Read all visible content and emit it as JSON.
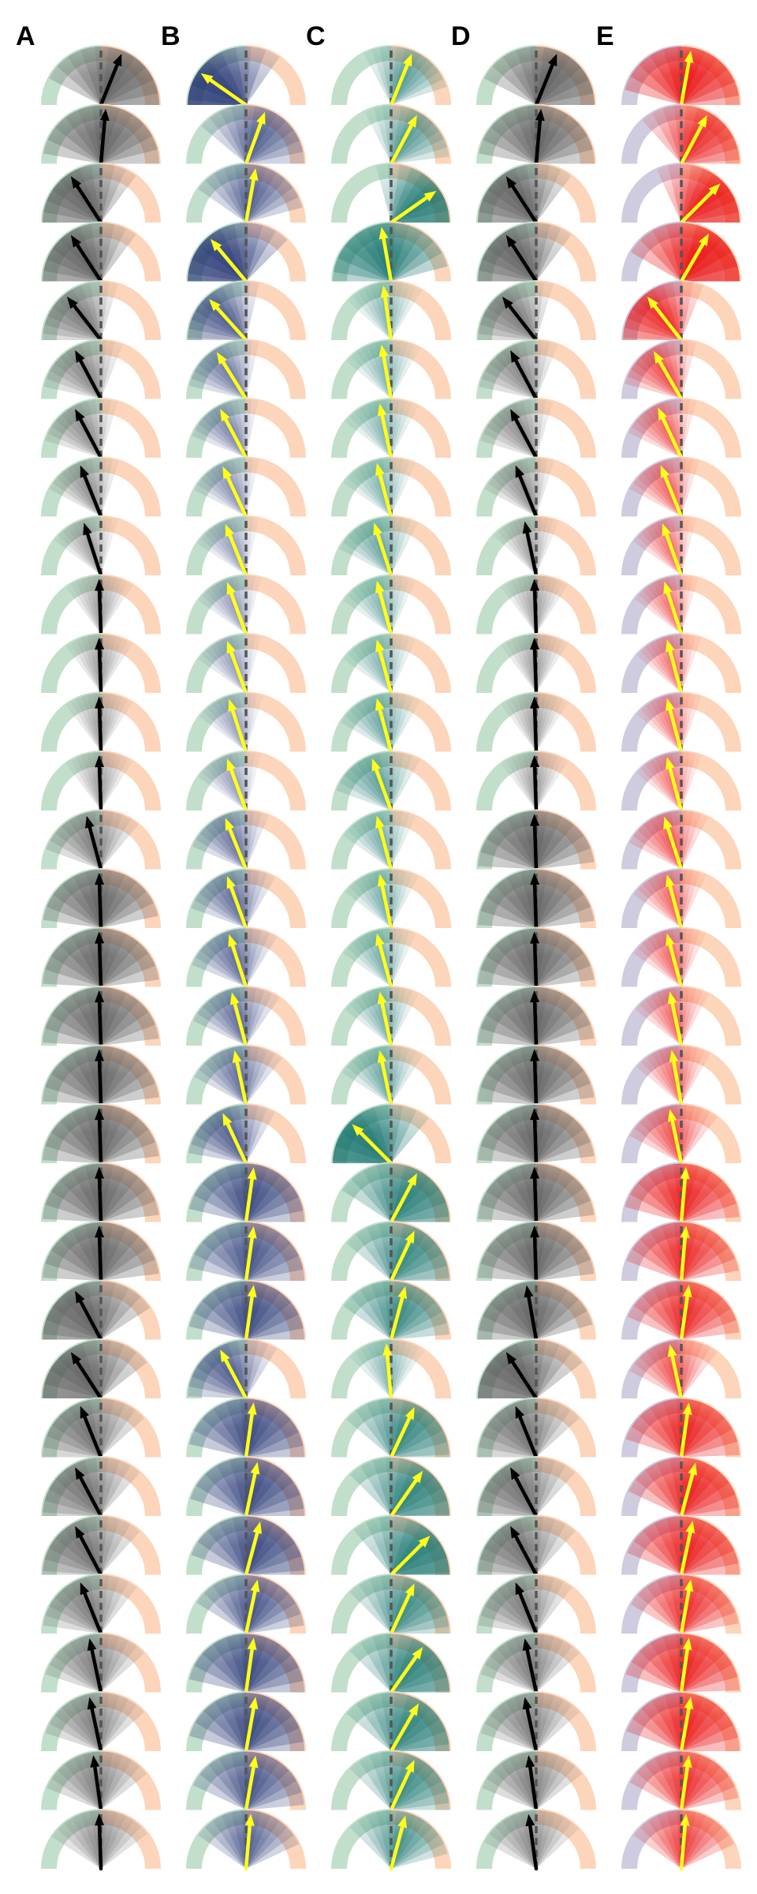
{
  "panels": [
    {
      "label": "A",
      "wedge": "#555555",
      "arrow": "#000000",
      "arc_left": "#c2dfcc",
      "arc_right": "#fdd5ba",
      "angles": [
        22,
        5,
        -33,
        -33,
        -38,
        -28,
        -28,
        -22,
        -18,
        -2,
        -2,
        -2,
        -2,
        -15,
        -2,
        -2,
        -2,
        -2,
        -2,
        -2,
        -2,
        -28,
        -33,
        -22,
        -28,
        -28,
        -22,
        -12,
        -12,
        -8,
        -2
      ],
      "spreads": [
        85,
        85,
        70,
        70,
        55,
        50,
        45,
        40,
        35,
        35,
        35,
        35,
        35,
        55,
        80,
        85,
        85,
        85,
        85,
        85,
        85,
        85,
        85,
        70,
        70,
        70,
        60,
        60,
        60,
        60,
        55
      ],
      "fills": [
        1,
        1,
        1,
        1,
        0.7,
        0.6,
        0.55,
        0.55,
        0.45,
        0.45,
        0.45,
        0.45,
        0.45,
        0.7,
        1,
        1,
        1,
        1,
        1,
        1,
        1,
        1,
        1,
        0.8,
        0.8,
        0.8,
        0.7,
        0.7,
        0.7,
        0.7,
        0.6
      ]
    },
    {
      "label": "B",
      "wedge": "#1e2f6e",
      "arrow": "#ffff1a",
      "arc_left": "#c2dfcc",
      "arc_right": "#fdd5ba",
      "angles": [
        -55,
        20,
        10,
        -40,
        -42,
        -32,
        -28,
        -25,
        -22,
        -20,
        -20,
        -18,
        -20,
        -22,
        -20,
        -18,
        -15,
        -12,
        -25,
        8,
        8,
        8,
        -28,
        8,
        12,
        15,
        12,
        8,
        10,
        10,
        5
      ],
      "spreads": [
        90,
        70,
        65,
        85,
        55,
        45,
        40,
        38,
        35,
        35,
        35,
        35,
        35,
        45,
        50,
        50,
        50,
        50,
        55,
        85,
        85,
        85,
        60,
        85,
        85,
        85,
        70,
        85,
        85,
        75,
        60
      ],
      "fills": [
        1,
        0.7,
        0.7,
        1,
        0.7,
        0.5,
        0.45,
        0.4,
        0.35,
        0.35,
        0.35,
        0.35,
        0.35,
        0.55,
        0.6,
        0.6,
        0.6,
        0.6,
        0.7,
        0.9,
        0.8,
        0.9,
        0.7,
        0.9,
        0.9,
        0.9,
        0.8,
        0.9,
        0.9,
        0.8,
        0.7
      ]
    },
    {
      "label": "C",
      "wedge": "#0e6e68",
      "arrow": "#ffff1a",
      "arc_left": "#c2dfcc",
      "arc_right": "#fdd5ba",
      "angles": [
        22,
        28,
        55,
        -10,
        -8,
        -10,
        -12,
        -15,
        -18,
        -15,
        -15,
        -15,
        -20,
        -15,
        -12,
        -15,
        -12,
        -12,
        -45,
        28,
        25,
        15,
        -5,
        25,
        35,
        45,
        25,
        35,
        30,
        25,
        15
      ],
      "spreads": [
        50,
        55,
        70,
        85,
        40,
        40,
        40,
        40,
        45,
        40,
        40,
        45,
        50,
        40,
        40,
        40,
        40,
        45,
        85,
        85,
        75,
        70,
        40,
        75,
        80,
        85,
        70,
        80,
        80,
        70,
        60
      ],
      "fills": [
        0.6,
        0.6,
        0.9,
        1,
        0.4,
        0.4,
        0.4,
        0.4,
        0.5,
        0.4,
        0.4,
        0.5,
        0.55,
        0.45,
        0.45,
        0.45,
        0.45,
        0.5,
        1,
        0.9,
        0.8,
        0.8,
        0.4,
        0.8,
        0.85,
        0.9,
        0.75,
        0.85,
        0.85,
        0.75,
        0.7
      ]
    },
    {
      "label": "D",
      "wedge": "#555555",
      "arrow": "#000000",
      "arc_left": "#c2dfcc",
      "arc_right": "#fdd5ba",
      "angles": [
        22,
        5,
        -33,
        -33,
        -38,
        -28,
        -28,
        -22,
        -12,
        -2,
        -2,
        -2,
        -2,
        -2,
        -2,
        -2,
        -2,
        -2,
        -2,
        -2,
        -2,
        -10,
        -33,
        -22,
        -28,
        -28,
        -22,
        -12,
        -12,
        -8,
        -8
      ],
      "spreads": [
        85,
        85,
        70,
        70,
        55,
        50,
        45,
        40,
        35,
        35,
        35,
        35,
        35,
        85,
        85,
        85,
        85,
        85,
        85,
        85,
        85,
        85,
        85,
        70,
        70,
        70,
        60,
        60,
        60,
        60,
        55
      ],
      "fills": [
        1,
        1,
        1,
        1,
        0.7,
        0.6,
        0.55,
        0.55,
        0.45,
        0.45,
        0.45,
        0.45,
        0.45,
        1,
        1,
        1,
        1,
        1,
        1,
        1,
        1,
        1,
        1,
        0.8,
        0.8,
        0.8,
        0.7,
        0.7,
        0.7,
        0.7,
        0.6
      ]
    },
    {
      "label": "E",
      "wedge": "#e80000",
      "arrow": "#ffff1a",
      "arc_left": "#cfcce0",
      "arc_right": "#fdd5ba",
      "angles": [
        10,
        28,
        45,
        30,
        -38,
        -30,
        -25,
        -22,
        -20,
        -18,
        -15,
        -15,
        -15,
        -18,
        -15,
        -15,
        -12,
        -10,
        -12,
        5,
        5,
        8,
        -12,
        8,
        15,
        12,
        10,
        8,
        10,
        8,
        5
      ],
      "spreads": [
        85,
        70,
        70,
        90,
        60,
        45,
        40,
        40,
        35,
        35,
        35,
        35,
        35,
        45,
        40,
        40,
        40,
        40,
        50,
        80,
        75,
        75,
        50,
        80,
        80,
        80,
        70,
        80,
        80,
        70,
        60
      ],
      "fills": [
        1,
        0.8,
        0.9,
        1,
        0.8,
        0.6,
        0.5,
        0.5,
        0.45,
        0.45,
        0.45,
        0.45,
        0.45,
        0.55,
        0.5,
        0.5,
        0.5,
        0.5,
        0.6,
        0.9,
        0.85,
        0.85,
        0.6,
        0.9,
        0.9,
        0.9,
        0.8,
        0.9,
        0.9,
        0.8,
        0.7
      ]
    }
  ]
}
